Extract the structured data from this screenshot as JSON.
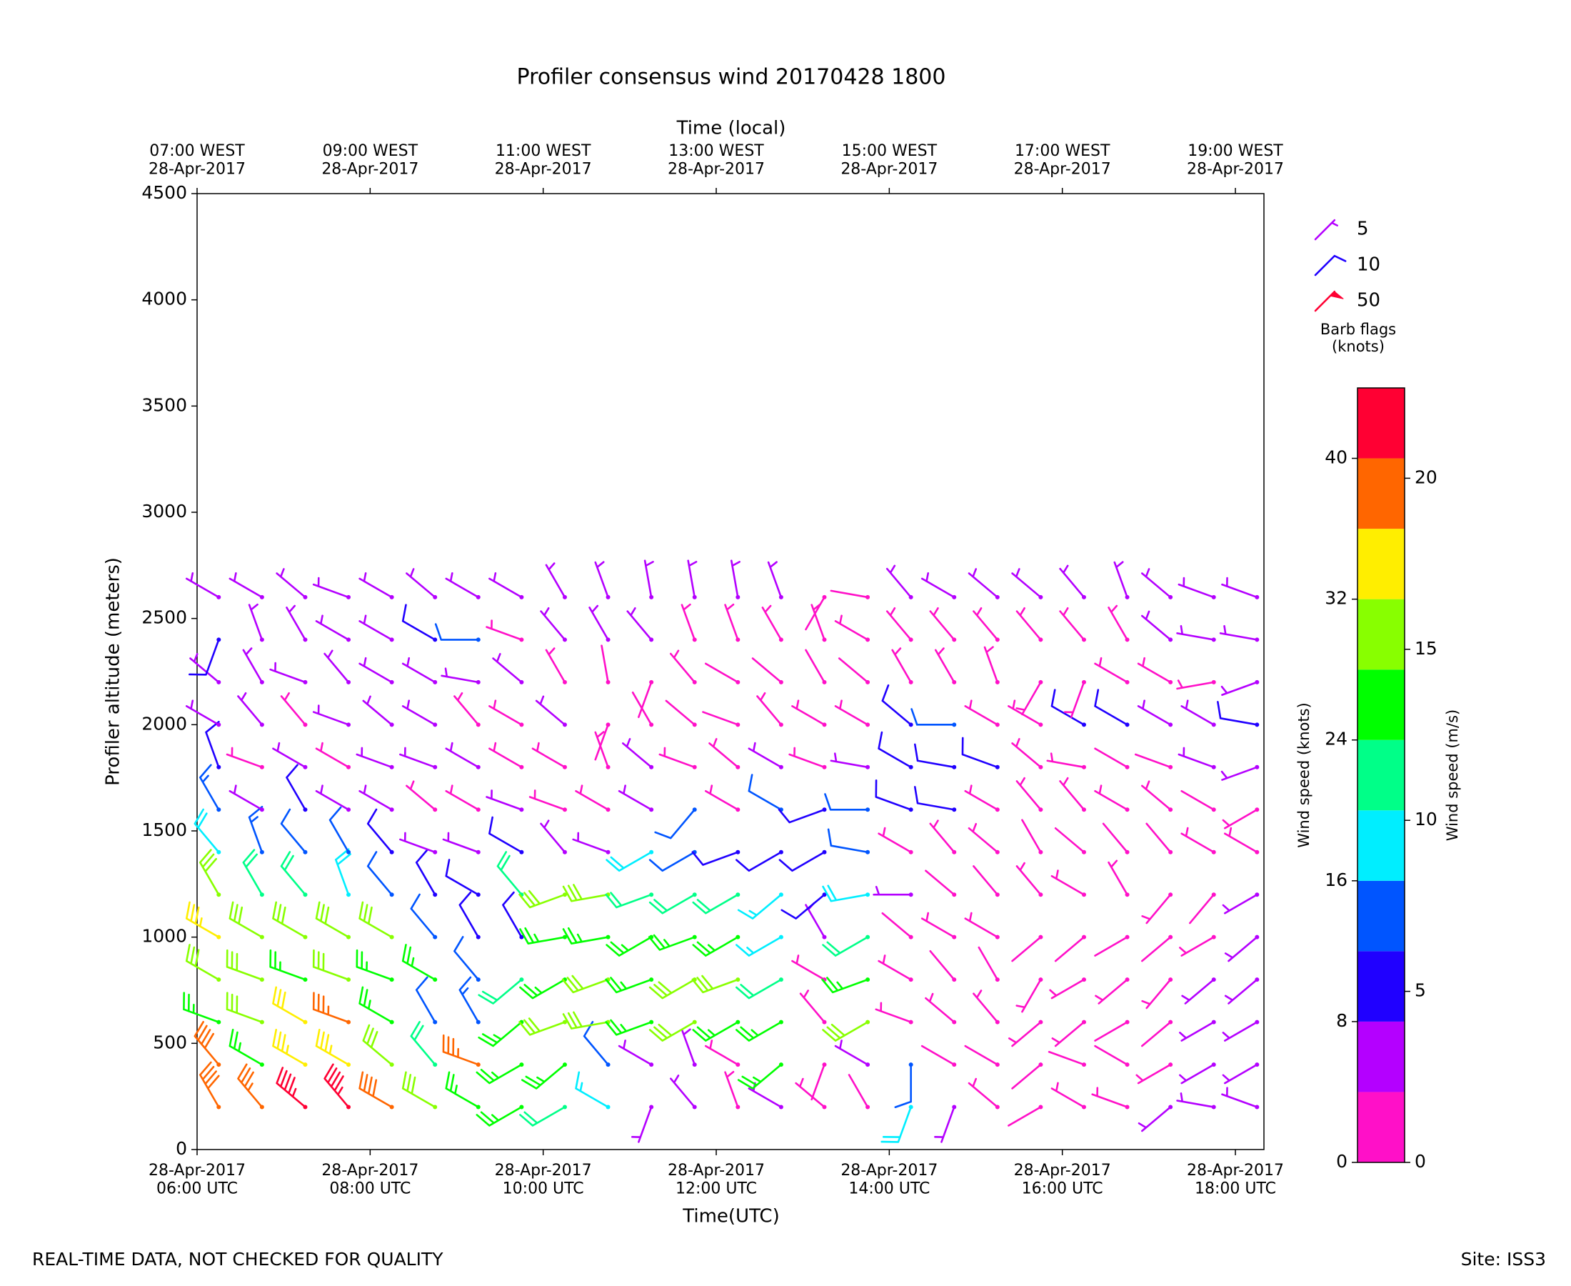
{
  "chart_data": {
    "type": "barbs",
    "title": "Profiler consensus wind 20170428 1800",
    "xlabel": "Time(UTC)",
    "ylabel": "Profiler altitude (meters)",
    "x2label": "Time (local)",
    "footer_left": "REAL-TIME DATA, NOT CHECKED FOR QUALITY",
    "footer_right": "Site: ISS3",
    "xlim": [
      6,
      18.33
    ],
    "ylim": [
      0,
      4500
    ],
    "yticks": [
      0,
      500,
      1000,
      1500,
      2000,
      2500,
      3000,
      3500,
      4000,
      4500
    ],
    "xticks": [
      {
        "value": 6,
        "label": "28-Apr-2017\n06:00 UTC"
      },
      {
        "value": 8,
        "label": "28-Apr-2017\n08:00 UTC"
      },
      {
        "value": 10,
        "label": "28-Apr-2017\n10:00 UTC"
      },
      {
        "value": 12,
        "label": "28-Apr-2017\n12:00 UTC"
      },
      {
        "value": 14,
        "label": "28-Apr-2017\n14:00 UTC"
      },
      {
        "value": 16,
        "label": "28-Apr-2017\n16:00 UTC"
      },
      {
        "value": 18,
        "label": "28-Apr-2017\n18:00 UTC"
      }
    ],
    "x2ticks": [
      {
        "value": 6,
        "label": "07:00 WEST\n28-Apr-2017"
      },
      {
        "value": 8,
        "label": "09:00 WEST\n28-Apr-2017"
      },
      {
        "value": 10,
        "label": "11:00 WEST\n28-Apr-2017"
      },
      {
        "value": 12,
        "label": "13:00 WEST\n28-Apr-2017"
      },
      {
        "value": 14,
        "label": "15:00 WEST\n28-Apr-2017"
      },
      {
        "value": 16,
        "label": "17:00 WEST\n28-Apr-2017"
      },
      {
        "value": 18,
        "label": "19:00 WEST\n28-Apr-2017"
      }
    ],
    "heights": [
      200,
      400,
      600,
      800,
      1000,
      1200,
      1400,
      1600,
      1800,
      2000,
      2200,
      2400,
      2600
    ],
    "profiles": [
      {
        "time": 6.25,
        "speed": [
          38,
          38,
          26,
          28,
          34,
          30,
          18,
          14,
          10,
          6,
          4,
          8,
          6
        ],
        "direction": [
          330,
          320,
          290,
          300,
          300,
          330,
          320,
          330,
          340,
          300,
          310,
          200,
          300
        ]
      },
      {
        "time": 6.75,
        "speed": [
          36,
          26,
          30,
          28,
          30,
          22,
          14,
          4,
          3,
          6,
          4,
          5,
          6
        ],
        "direction": [
          320,
          300,
          290,
          290,
          300,
          330,
          340,
          300,
          290,
          320,
          330,
          340,
          300
        ]
      },
      {
        "time": 7.25,
        "speed": [
          44,
          34,
          32,
          26,
          30,
          20,
          12,
          10,
          4,
          3,
          4,
          6,
          5
        ],
        "direction": [
          310,
          300,
          300,
          290,
          300,
          320,
          320,
          330,
          300,
          320,
          290,
          330,
          310
        ]
      },
      {
        "time": 7.75,
        "speed": [
          44,
          34,
          36,
          30,
          28,
          18,
          12,
          4,
          3,
          4,
          4,
          6,
          6
        ],
        "direction": [
          320,
          300,
          290,
          290,
          300,
          340,
          330,
          300,
          300,
          290,
          320,
          300,
          290
        ]
      },
      {
        "time": 8.25,
        "speed": [
          38,
          28,
          24,
          26,
          30,
          12,
          10,
          6,
          4,
          4,
          5,
          6,
          5
        ],
        "direction": [
          300,
          310,
          300,
          290,
          300,
          320,
          320,
          300,
          290,
          310,
          300,
          300,
          300
        ]
      },
      {
        "time": 8.75,
        "speed": [
          28,
          20,
          12,
          24,
          12,
          10,
          4,
          3,
          4,
          4,
          6,
          10,
          6
        ],
        "direction": [
          300,
          320,
          330,
          300,
          320,
          330,
          290,
          310,
          290,
          300,
          300,
          300,
          310
        ]
      },
      {
        "time": 9.25,
        "speed": [
          24,
          36,
          14,
          12,
          8,
          8,
          4,
          3,
          4,
          3,
          4,
          12,
          6
        ],
        "direction": [
          300,
          290,
          330,
          320,
          330,
          300,
          290,
          300,
          300,
          320,
          280,
          270,
          300
        ]
      },
      {
        "time": 9.75,
        "speed": [
          26,
          24,
          26,
          22,
          10,
          20,
          8,
          4,
          3,
          3,
          4,
          3,
          6
        ],
        "direction": [
          240,
          240,
          230,
          230,
          330,
          320,
          300,
          290,
          300,
          300,
          310,
          290,
          300
        ]
      },
      {
        "time": 10.25,
        "speed": [
          20,
          24,
          28,
          26,
          26,
          30,
          4,
          3,
          3,
          4,
          3,
          4,
          6
        ],
        "direction": [
          240,
          230,
          250,
          240,
          260,
          250,
          320,
          290,
          300,
          310,
          330,
          320,
          330
        ]
      },
      {
        "time": 10.75,
        "speed": [
          16,
          12,
          28,
          28,
          26,
          30,
          4,
          3,
          3,
          2,
          2,
          4,
          6
        ],
        "direction": [
          300,
          320,
          260,
          250,
          260,
          260,
          290,
          300,
          340,
          200,
          350,
          330,
          340
        ]
      },
      {
        "time": 11.25,
        "speed": [
          4,
          4,
          26,
          26,
          24,
          20,
          18,
          4,
          4,
          2,
          2,
          4,
          6
        ],
        "direction": [
          200,
          300,
          250,
          250,
          240,
          250,
          240,
          300,
          310,
          330,
          200,
          320,
          350
        ]
      },
      {
        "time": 11.75,
        "speed": [
          4,
          4,
          30,
          28,
          24,
          22,
          12,
          12,
          3,
          2,
          3,
          3,
          4
        ],
        "direction": [
          320,
          340,
          240,
          240,
          250,
          240,
          240,
          220,
          290,
          310,
          320,
          340,
          350
        ]
      },
      {
        "time": 12.25,
        "speed": [
          3,
          3,
          24,
          28,
          26,
          22,
          8,
          3,
          3,
          2,
          2,
          3,
          4
        ],
        "direction": [
          340,
          300,
          240,
          250,
          240,
          240,
          250,
          300,
          310,
          290,
          300,
          340,
          350
        ]
      },
      {
        "time": 12.75,
        "speed": [
          4,
          24,
          26,
          22,
          16,
          16,
          10,
          12,
          4,
          3,
          2,
          3,
          4
        ],
        "direction": [
          300,
          230,
          240,
          240,
          240,
          230,
          240,
          300,
          300,
          320,
          310,
          330,
          340
        ]
      },
      {
        "time": 13.25,
        "speed": [
          3,
          2,
          3,
          3,
          4,
          8,
          10,
          8,
          3,
          3,
          2,
          3,
          2
        ],
        "direction": [
          310,
          200,
          320,
          300,
          330,
          230,
          240,
          250,
          290,
          300,
          330,
          340,
          210
        ]
      },
      {
        "time": 13.75,
        "speed": [
          2,
          4,
          28,
          24,
          22,
          18,
          12,
          12,
          6,
          3,
          2,
          3,
          2
        ],
        "direction": [
          330,
          300,
          240,
          250,
          240,
          260,
          280,
          270,
          280,
          300,
          310,
          300,
          280
        ]
      },
      {
        "time": 14.25,
        "speed": [
          18,
          12,
          3,
          3,
          2,
          4,
          3,
          10,
          10,
          10,
          3,
          3,
          4
        ],
        "direction": [
          200,
          180,
          290,
          300,
          310,
          270,
          300,
          290,
          300,
          310,
          330,
          320,
          320
        ]
      },
      {
        "time": 14.75,
        "speed": [
          4,
          2,
          3,
          2,
          3,
          2,
          3,
          10,
          10,
          12,
          3,
          3,
          4
        ],
        "direction": [
          200,
          300,
          310,
          320,
          300,
          310,
          320,
          280,
          280,
          270,
          330,
          320,
          300
        ]
      },
      {
        "time": 15.25,
        "speed": [
          3,
          2,
          3,
          2,
          3,
          2,
          3,
          3,
          10,
          3,
          3,
          3,
          4
        ],
        "direction": [
          310,
          300,
          320,
          330,
          300,
          320,
          310,
          300,
          290,
          300,
          340,
          320,
          310
        ]
      },
      {
        "time": 15.75,
        "speed": [
          2,
          2,
          3,
          3,
          2,
          3,
          2,
          3,
          3,
          3,
          3,
          3,
          4
        ],
        "direction": [
          240,
          230,
          230,
          210,
          230,
          320,
          330,
          320,
          310,
          300,
          210,
          320,
          310
        ]
      },
      {
        "time": 16.25,
        "speed": [
          3,
          2,
          3,
          3,
          2,
          3,
          2,
          3,
          3,
          8,
          3,
          3,
          4
        ],
        "direction": [
          300,
          290,
          230,
          240,
          230,
          300,
          310,
          320,
          280,
          300,
          200,
          320,
          320
        ]
      },
      {
        "time": 16.75,
        "speed": [
          3,
          2,
          2,
          3,
          2,
          3,
          2,
          3,
          2,
          8,
          3,
          3,
          4
        ],
        "direction": [
          290,
          300,
          240,
          230,
          240,
          330,
          320,
          300,
          300,
          300,
          300,
          330,
          340
        ]
      },
      {
        "time": 17.25,
        "speed": [
          4,
          3,
          2,
          3,
          2,
          3,
          2,
          3,
          2,
          6,
          3,
          4,
          5
        ],
        "direction": [
          230,
          240,
          230,
          220,
          230,
          220,
          320,
          310,
          290,
          300,
          300,
          310,
          310
        ]
      },
      {
        "time": 17.75,
        "speed": [
          6,
          5,
          6,
          5,
          3,
          2,
          3,
          2,
          4,
          6,
          3,
          4,
          6
        ],
        "direction": [
          280,
          240,
          240,
          230,
          240,
          220,
          300,
          300,
          290,
          300,
          260,
          280,
          290
        ]
      },
      {
        "time": 18.25,
        "speed": [
          6,
          5,
          6,
          6,
          5,
          4,
          3,
          3,
          6,
          10,
          6,
          6,
          6
        ],
        "direction": [
          290,
          240,
          240,
          230,
          230,
          240,
          300,
          240,
          250,
          280,
          250,
          280,
          290
        ]
      }
    ],
    "legend": {
      "title": "Barb flags\n(knots)",
      "items": [
        {
          "value": 5,
          "color": "#b400ff"
        },
        {
          "value": 10,
          "color": "#2000ff"
        },
        {
          "value": 50,
          "color": "#ff0033"
        }
      ]
    },
    "colorbar": {
      "label": "Wind speed (knots)",
      "label2": "Wind speed (m/s)",
      "bounds": [
        0,
        4,
        8,
        12,
        16,
        20,
        24,
        28,
        32,
        36,
        40,
        44
      ],
      "colors": [
        "#ff10c8",
        "#b400ff",
        "#2000ff",
        "#0055ff",
        "#00eeff",
        "#00ff88",
        "#00ff00",
        "#88ff00",
        "#ffee00",
        "#ff6600",
        "#ff0033"
      ],
      "ticks": [
        0,
        8,
        16,
        24,
        32,
        40
      ],
      "y2lim": [
        0,
        22.64
      ],
      "y2ticks": [
        0,
        5,
        10,
        15,
        20
      ]
    }
  }
}
